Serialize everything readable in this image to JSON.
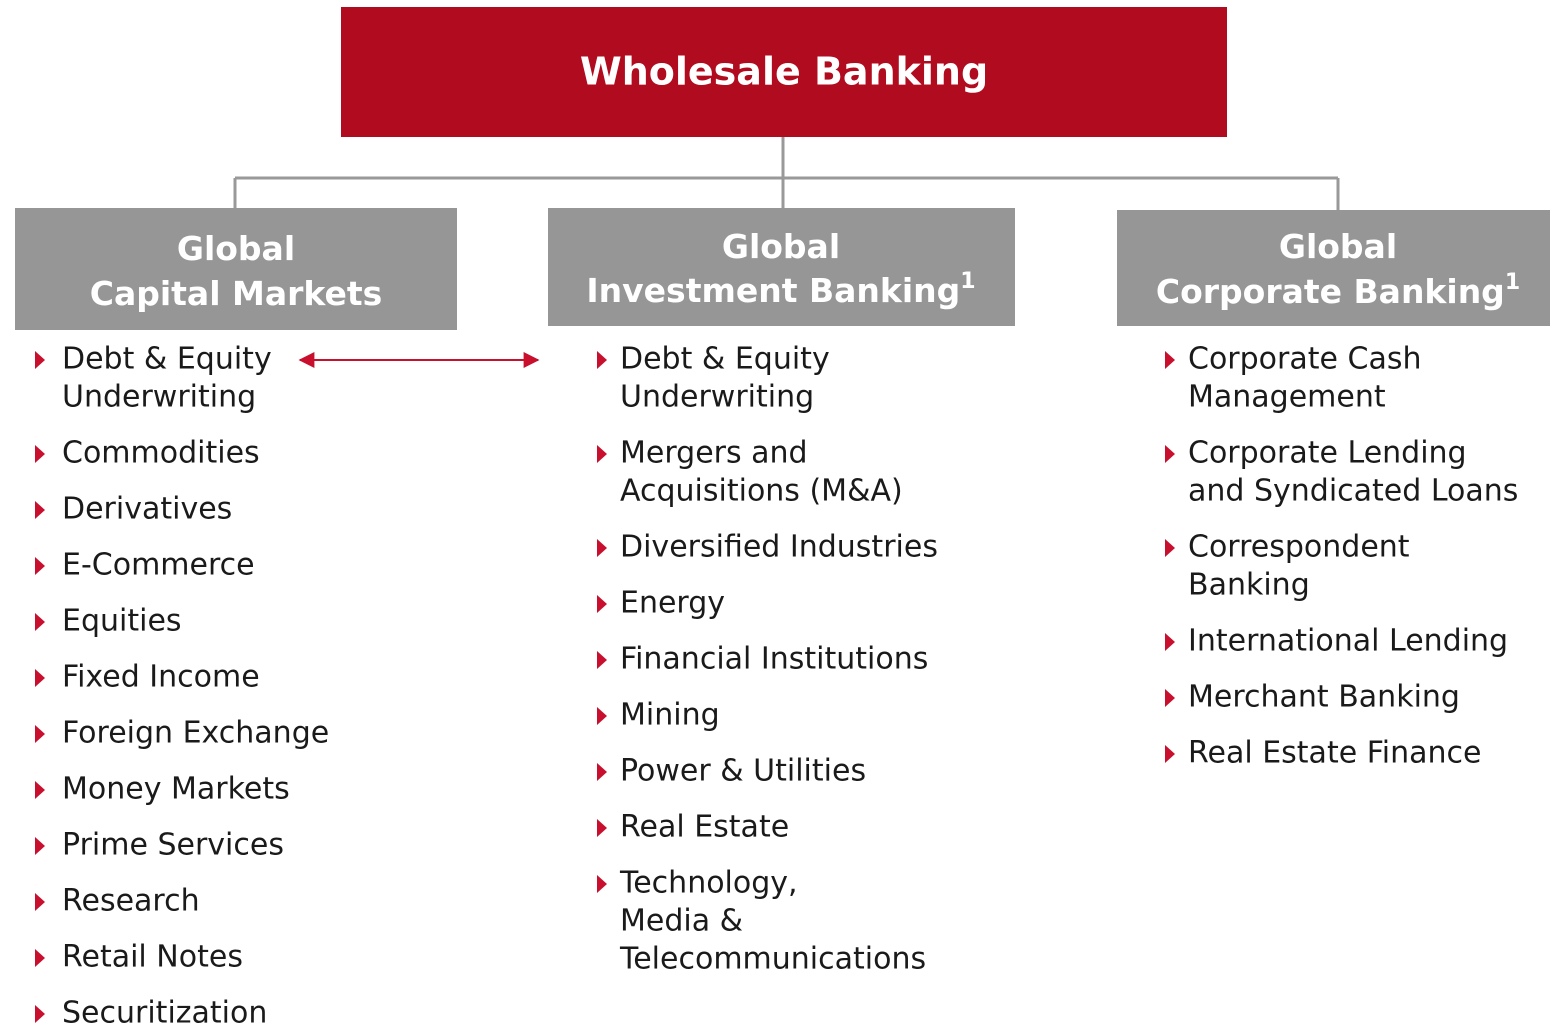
{
  "root": {
    "title": "Wholesale Banking"
  },
  "nodes": [
    {
      "title_lines": [
        "Global",
        "Capital Markets"
      ],
      "items": [
        [
          "Debt & Equity",
          "Underwriting"
        ],
        [
          "Commodities"
        ],
        [
          "Derivatives"
        ],
        [
          "E-Commerce"
        ],
        [
          "Equities"
        ],
        [
          "Fixed Income"
        ],
        [
          "Foreign Exchange"
        ],
        [
          "Money Markets"
        ],
        [
          "Prime Services"
        ],
        [
          "Research"
        ],
        [
          "Retail Notes"
        ],
        [
          "Securitization"
        ]
      ]
    },
    {
      "title_lines": [
        "Global",
        "Investment Banking"
      ],
      "footnote": "1",
      "items": [
        [
          "Debt & Equity",
          "Underwriting"
        ],
        [
          "Mergers and",
          "Acquisitions (M&A)"
        ],
        [
          "Diversified Industries"
        ],
        [
          "Energy"
        ],
        [
          "Financial Institutions"
        ],
        [
          "Mining"
        ],
        [
          "Power & Utilities"
        ],
        [
          "Real Estate"
        ],
        [
          "Technology,",
          "Media &",
          "Telecommunications"
        ]
      ]
    },
    {
      "title_lines": [
        "Global",
        "Corporate Banking"
      ],
      "footnote": "1",
      "items": [
        [
          "Corporate Cash",
          "Management"
        ],
        [
          "Corporate Lending",
          "and Syndicated Loans"
        ],
        [
          "Correspondent",
          "Banking"
        ],
        [
          "International Lending"
        ],
        [
          "Merchant Banking"
        ],
        [
          "Real Estate Finance"
        ]
      ]
    }
  ]
}
